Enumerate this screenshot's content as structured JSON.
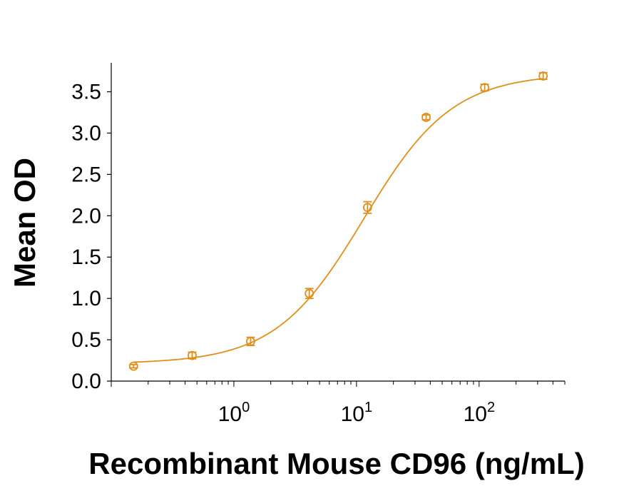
{
  "chart_data": {
    "type": "scatter",
    "xlabel": "Recombinant Mouse CD96 (ng/mL)",
    "ylabel": "Mean OD",
    "x_scale": "log",
    "xlim": [
      0.1,
      500
    ],
    "ylim": [
      0,
      3.85
    ],
    "y_ticks": [
      {
        "value": 0.0,
        "label": "0.0"
      },
      {
        "value": 0.5,
        "label": "0.5"
      },
      {
        "value": 1.0,
        "label": "1.0"
      },
      {
        "value": 1.5,
        "label": "1.5"
      },
      {
        "value": 2.0,
        "label": "2.0"
      },
      {
        "value": 2.5,
        "label": "2.5"
      },
      {
        "value": 3.0,
        "label": "3.0"
      },
      {
        "value": 3.5,
        "label": "3.5"
      }
    ],
    "x_ticks": [
      {
        "value": 1,
        "base": "10",
        "exponent": "0"
      },
      {
        "value": 10,
        "base": "10",
        "exponent": "1"
      },
      {
        "value": 100,
        "base": "10",
        "exponent": "2"
      }
    ],
    "grid": false,
    "legend": "none",
    "color": "#E0901A",
    "series": [
      {
        "points": [
          {
            "x": 0.152,
            "y": 0.18,
            "err": 0.02
          },
          {
            "x": 0.457,
            "y": 0.31,
            "err": 0.04
          },
          {
            "x": 1.37,
            "y": 0.48,
            "err": 0.05
          },
          {
            "x": 4.12,
            "y": 1.06,
            "err": 0.06
          },
          {
            "x": 12.3,
            "y": 2.1,
            "err": 0.07
          },
          {
            "x": 37.0,
            "y": 3.19,
            "err": 0.03
          },
          {
            "x": 111.0,
            "y": 3.55,
            "err": 0.04
          },
          {
            "x": 333.0,
            "y": 3.69,
            "err": 0.04
          }
        ],
        "fit": {
          "model": "4PL",
          "bottom": 0.21,
          "top": 3.72,
          "ec50": 11.5,
          "hill": 1.2
        }
      }
    ]
  }
}
